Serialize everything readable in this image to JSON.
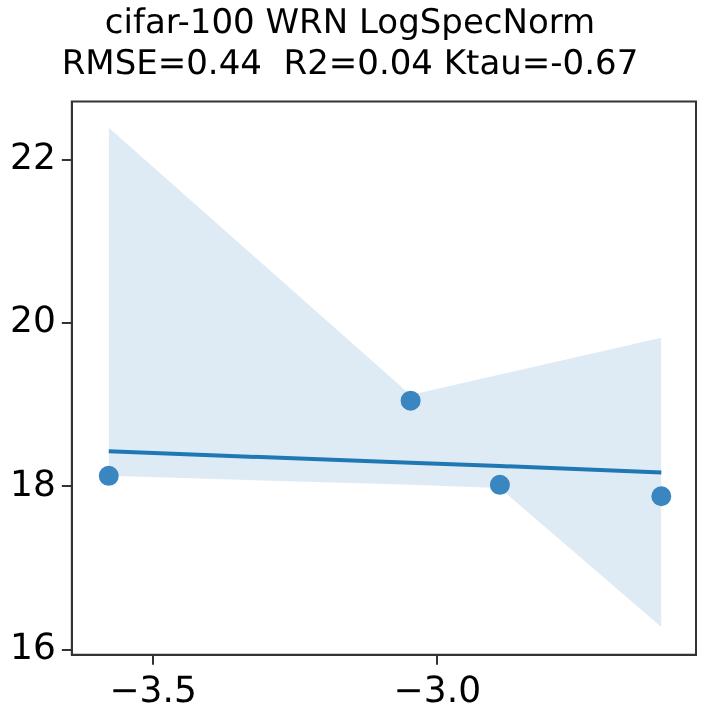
{
  "chart_data": {
    "type": "scatter",
    "title": "cifar-100 WRN LogSpecNorm",
    "subtitle": "RMSE=0.44  R2=0.04 Ktau=-0.67",
    "series": [
      {
        "type": "scatter",
        "color": "#3a86c0",
        "x": [
          -3.578,
          -3.047,
          -2.89,
          -2.606
        ],
        "values": [
          18.13,
          19.05,
          18.02,
          17.88
        ],
        "marker": "circle"
      },
      {
        "type": "line",
        "color": "#1f77b4",
        "x": [
          -3.578,
          -3.047,
          -2.89,
          -2.606
        ],
        "values": [
          18.43,
          18.29,
          18.25,
          18.17
        ],
        "lower": [
          18.13,
          18.02,
          17.98,
          16.28
        ],
        "upper": [
          22.39,
          19.12,
          19.37,
          19.82
        ]
      }
    ],
    "xlim": [
      -3.643,
      -2.545
    ],
    "xticks": [
      {
        "value": -3.5,
        "label": "−3.5"
      },
      {
        "value": -3.0,
        "label": "−3.0"
      }
    ],
    "ylim": [
      15.94,
      22.71
    ],
    "yticks": [
      16,
      18,
      20,
      22
    ],
    "grid": false,
    "legend": false
  }
}
